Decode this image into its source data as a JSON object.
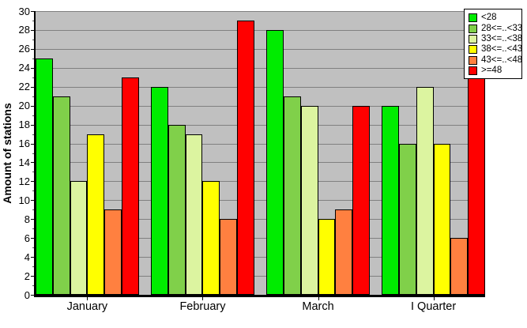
{
  "chart_data": {
    "type": "bar",
    "title": "",
    "xlabel": "",
    "ylabel": "Amount of stations",
    "ylim": [
      0,
      30
    ],
    "ytick_step": 2,
    "grid": true,
    "legend_position": "top-right",
    "plot_bg_color": "#c0c0c0",
    "grid_color": "#808080",
    "bar_border_color": "#000000",
    "categories": [
      "January",
      "February",
      "March",
      "I Quarter"
    ],
    "series": [
      {
        "name": "<28",
        "color": "#00ec00",
        "values": [
          25,
          22,
          28,
          20
        ]
      },
      {
        "name": "28<=..<33",
        "color": "#80d04a",
        "values": [
          21,
          18,
          21,
          16
        ]
      },
      {
        "name": "33<=..<38",
        "color": "#dcf4a0",
        "values": [
          12,
          17,
          20,
          22
        ]
      },
      {
        "name": "38<=..<43",
        "color": "#ffff00",
        "values": [
          17,
          12,
          8,
          16
        ]
      },
      {
        "name": "43<=..<48",
        "color": "#ff8040",
        "values": [
          9,
          8,
          9,
          6
        ]
      },
      {
        "name": ">=48",
        "color": "#ff0000",
        "values": [
          23,
          29,
          20,
          25
        ]
      }
    ]
  }
}
